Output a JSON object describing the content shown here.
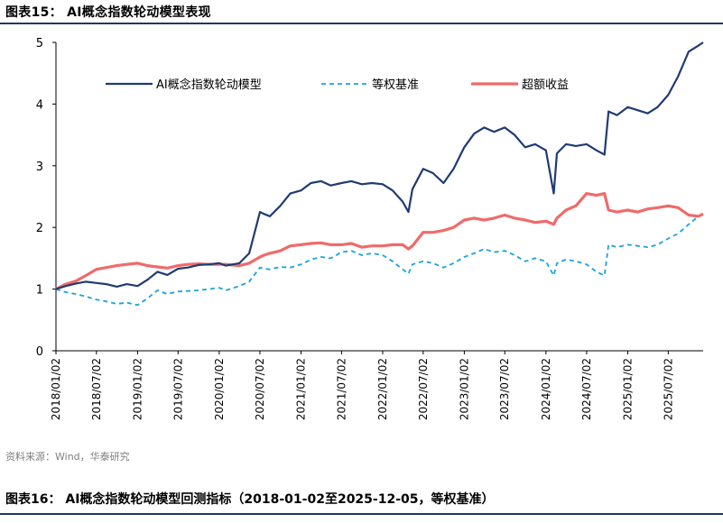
{
  "header": {
    "title": "图表15： AI概念指数轮动模型表现"
  },
  "footer": {
    "source": "资料来源：Wind，华泰研究",
    "next_title": "图表16： AI概念指数轮动模型回测指标（2018-01-02至2025-12-05，等权基准）"
  },
  "colors": {
    "model": "#1f3b73",
    "benchmark": "#1aa3dc",
    "excess": "#f06a6a",
    "rule": "#1f3864"
  },
  "chart_data": {
    "type": "line",
    "title": "",
    "xlabel": "",
    "ylabel": "",
    "ylim": [
      0,
      5
    ],
    "yticks": [
      0,
      1,
      2,
      3,
      4,
      5
    ],
    "x_range": [
      "2018-01-02",
      "2025-12-05"
    ],
    "xticks": [
      "2018/01/02",
      "2018/07/02",
      "2019/01/02",
      "2019/07/02",
      "2020/01/02",
      "2020/07/02",
      "2021/01/02",
      "2021/07/02",
      "2022/01/02",
      "2022/07/02",
      "2023/01/02",
      "2023/07/02",
      "2024/01/02",
      "2024/07/02",
      "2025/01/02",
      "2025/07/02"
    ],
    "grid": false,
    "legend_position": "top",
    "series": [
      {
        "name": "AI概念指数轮动模型",
        "style": "solid",
        "x": [
          "2018-01-02",
          "2018-02-15",
          "2018-04-01",
          "2018-05-15",
          "2018-07-02",
          "2018-08-15",
          "2018-10-01",
          "2018-11-15",
          "2019-01-02",
          "2019-02-15",
          "2019-04-01",
          "2019-05-15",
          "2019-07-02",
          "2019-08-15",
          "2019-10-01",
          "2019-11-15",
          "2020-01-02",
          "2020-02-01",
          "2020-04-01",
          "2020-05-15",
          "2020-07-02",
          "2020-07-20",
          "2020-08-15",
          "2020-10-01",
          "2020-11-15",
          "2021-01-02",
          "2021-02-15",
          "2021-04-01",
          "2021-05-15",
          "2021-07-02",
          "2021-08-15",
          "2021-10-01",
          "2021-11-15",
          "2022-01-02",
          "2022-02-15",
          "2022-04-01",
          "2022-04-27",
          "2022-05-15",
          "2022-07-02",
          "2022-08-15",
          "2022-10-01",
          "2022-11-15",
          "2023-01-02",
          "2023-02-15",
          "2023-04-01",
          "2023-05-15",
          "2023-07-02",
          "2023-08-15",
          "2023-10-01",
          "2023-11-15",
          "2024-01-02",
          "2024-02-06",
          "2024-02-20",
          "2024-04-01",
          "2024-05-15",
          "2024-07-02",
          "2024-08-15",
          "2024-09-20",
          "2024-10-08",
          "2024-11-15",
          "2025-01-02",
          "2025-02-15",
          "2025-04-01",
          "2025-05-15",
          "2025-07-02",
          "2025-08-15",
          "2025-10-01",
          "2025-11-15",
          "2025-12-05"
        ],
        "y": [
          1.0,
          1.05,
          1.09,
          1.12,
          1.1,
          1.08,
          1.04,
          1.08,
          1.05,
          1.15,
          1.28,
          1.23,
          1.33,
          1.35,
          1.39,
          1.4,
          1.42,
          1.38,
          1.42,
          1.58,
          2.25,
          2.22,
          2.18,
          2.35,
          2.55,
          2.6,
          2.72,
          2.75,
          2.68,
          2.72,
          2.75,
          2.7,
          2.72,
          2.7,
          2.6,
          2.42,
          2.25,
          2.62,
          2.95,
          2.88,
          2.72,
          2.95,
          3.3,
          3.52,
          3.62,
          3.55,
          3.62,
          3.5,
          3.3,
          3.35,
          3.25,
          2.55,
          3.2,
          3.35,
          3.32,
          3.35,
          3.25,
          3.18,
          3.88,
          3.82,
          3.95,
          3.9,
          3.85,
          3.95,
          4.15,
          4.45,
          4.85,
          4.95,
          5.0
        ]
      },
      {
        "name": "等权基准",
        "style": "dashed",
        "x": [
          "2018-01-02",
          "2018-02-15",
          "2018-04-01",
          "2018-05-15",
          "2018-07-02",
          "2018-08-15",
          "2018-10-01",
          "2018-11-15",
          "2019-01-02",
          "2019-02-15",
          "2019-04-01",
          "2019-05-15",
          "2019-07-02",
          "2019-08-15",
          "2019-10-01",
          "2019-11-15",
          "2020-01-02",
          "2020-02-01",
          "2020-04-01",
          "2020-05-15",
          "2020-07-02",
          "2020-07-20",
          "2020-08-15",
          "2020-10-01",
          "2020-11-15",
          "2021-01-02",
          "2021-02-15",
          "2021-04-01",
          "2021-05-15",
          "2021-07-02",
          "2021-08-15",
          "2021-10-01",
          "2021-11-15",
          "2022-01-02",
          "2022-02-15",
          "2022-04-01",
          "2022-04-27",
          "2022-05-15",
          "2022-07-02",
          "2022-08-15",
          "2022-10-01",
          "2022-11-15",
          "2023-01-02",
          "2023-02-15",
          "2023-04-01",
          "2023-05-15",
          "2023-07-02",
          "2023-08-15",
          "2023-10-01",
          "2023-11-15",
          "2024-01-02",
          "2024-02-06",
          "2024-02-20",
          "2024-04-01",
          "2024-05-15",
          "2024-07-02",
          "2024-08-15",
          "2024-09-20",
          "2024-10-08",
          "2024-11-15",
          "2025-01-02",
          "2025-02-15",
          "2025-04-01",
          "2025-05-15",
          "2025-07-02",
          "2025-08-15",
          "2025-10-01",
          "2025-11-15",
          "2025-12-05"
        ],
        "y": [
          1.0,
          0.95,
          0.92,
          0.88,
          0.83,
          0.8,
          0.76,
          0.78,
          0.74,
          0.85,
          0.98,
          0.92,
          0.96,
          0.97,
          0.98,
          1.0,
          1.02,
          0.98,
          1.05,
          1.12,
          1.35,
          1.33,
          1.32,
          1.36,
          1.35,
          1.4,
          1.48,
          1.52,
          1.5,
          1.6,
          1.62,
          1.55,
          1.58,
          1.55,
          1.45,
          1.32,
          1.25,
          1.4,
          1.45,
          1.42,
          1.35,
          1.42,
          1.52,
          1.58,
          1.65,
          1.6,
          1.62,
          1.55,
          1.45,
          1.5,
          1.45,
          1.22,
          1.42,
          1.48,
          1.45,
          1.4,
          1.28,
          1.22,
          1.72,
          1.68,
          1.72,
          1.7,
          1.68,
          1.72,
          1.82,
          1.9,
          2.05,
          2.18,
          2.22
        ]
      },
      {
        "name": "超额收益",
        "style": "solid",
        "x": [
          "2018-01-02",
          "2018-02-15",
          "2018-04-01",
          "2018-05-15",
          "2018-07-02",
          "2018-08-15",
          "2018-10-01",
          "2018-11-15",
          "2019-01-02",
          "2019-02-15",
          "2019-04-01",
          "2019-05-15",
          "2019-07-02",
          "2019-08-15",
          "2019-10-01",
          "2019-11-15",
          "2020-01-02",
          "2020-02-01",
          "2020-04-01",
          "2020-05-15",
          "2020-07-02",
          "2020-07-20",
          "2020-08-15",
          "2020-10-01",
          "2020-11-15",
          "2021-01-02",
          "2021-02-15",
          "2021-04-01",
          "2021-05-15",
          "2021-07-02",
          "2021-08-15",
          "2021-10-01",
          "2021-11-15",
          "2022-01-02",
          "2022-02-15",
          "2022-04-01",
          "2022-04-27",
          "2022-05-15",
          "2022-07-02",
          "2022-08-15",
          "2022-10-01",
          "2022-11-15",
          "2023-01-02",
          "2023-02-15",
          "2023-04-01",
          "2023-05-15",
          "2023-07-02",
          "2023-08-15",
          "2023-10-01",
          "2023-11-15",
          "2024-01-02",
          "2024-02-06",
          "2024-02-20",
          "2024-04-01",
          "2024-05-15",
          "2024-07-02",
          "2024-08-15",
          "2024-09-20",
          "2024-10-08",
          "2024-11-15",
          "2025-01-02",
          "2025-02-15",
          "2025-04-01",
          "2025-05-15",
          "2025-07-02",
          "2025-08-15",
          "2025-10-01",
          "2025-11-15",
          "2025-12-05"
        ],
        "y": [
          1.0,
          1.08,
          1.13,
          1.22,
          1.32,
          1.35,
          1.38,
          1.4,
          1.42,
          1.38,
          1.36,
          1.34,
          1.38,
          1.4,
          1.41,
          1.4,
          1.4,
          1.4,
          1.38,
          1.42,
          1.52,
          1.55,
          1.58,
          1.62,
          1.7,
          1.72,
          1.74,
          1.75,
          1.72,
          1.72,
          1.74,
          1.68,
          1.7,
          1.7,
          1.72,
          1.72,
          1.65,
          1.7,
          1.92,
          1.92,
          1.95,
          2.0,
          2.12,
          2.15,
          2.12,
          2.15,
          2.2,
          2.15,
          2.12,
          2.08,
          2.1,
          2.05,
          2.15,
          2.28,
          2.35,
          2.55,
          2.52,
          2.55,
          2.28,
          2.25,
          2.28,
          2.25,
          2.3,
          2.32,
          2.35,
          2.32,
          2.2,
          2.18,
          2.22
        ]
      }
    ]
  }
}
